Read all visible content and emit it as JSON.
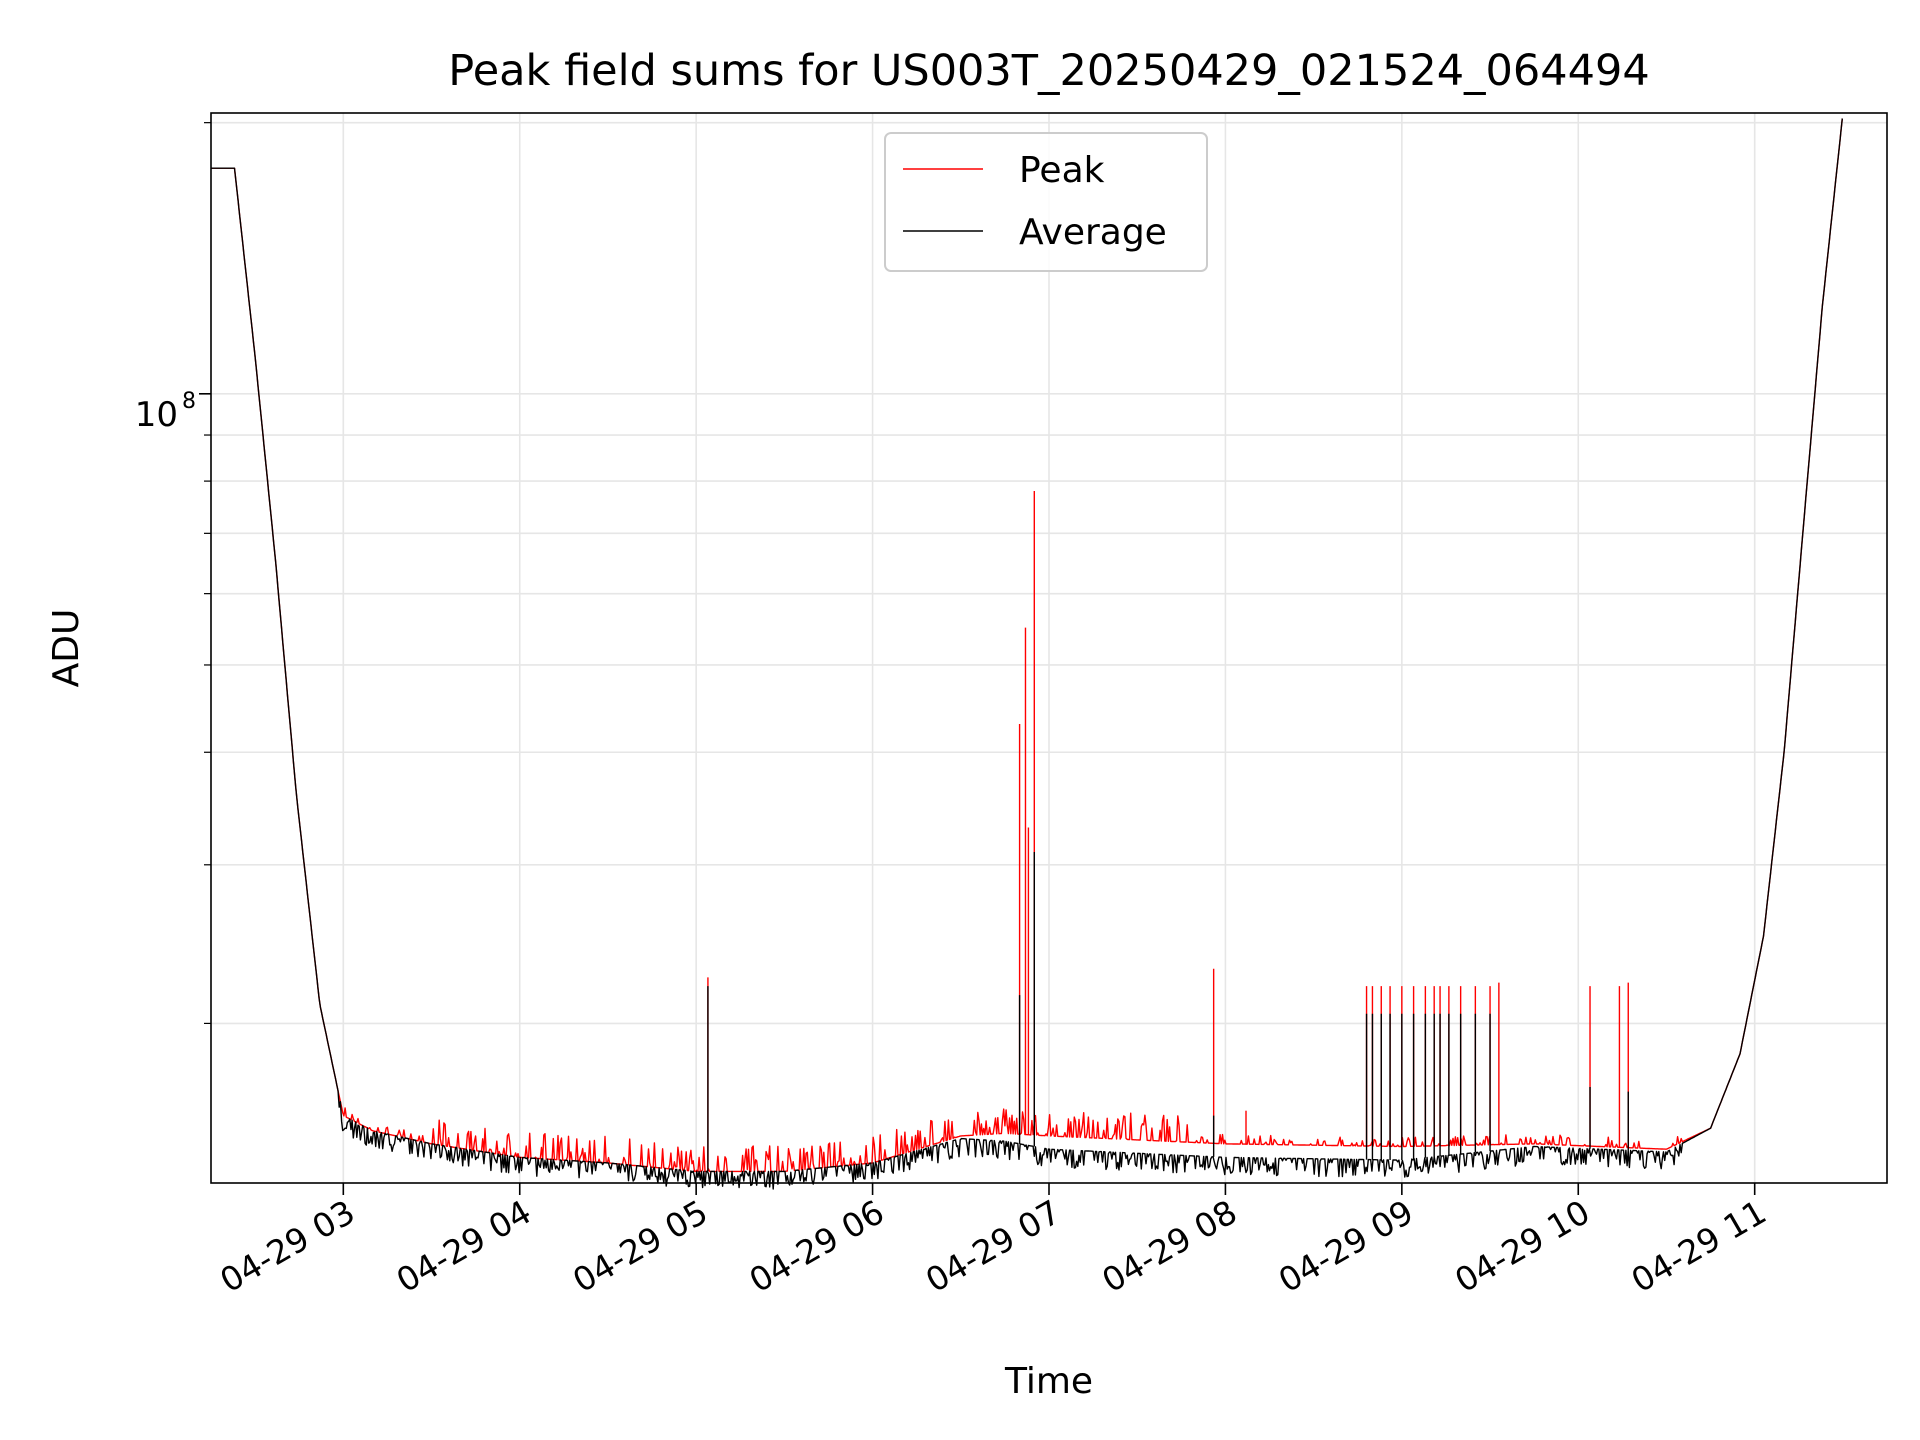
{
  "chart_data": {
    "type": "line",
    "title": "Peak field sums for US003T_20250429_021524_064494",
    "xlabel": "Time",
    "ylabel": "ADU",
    "yscale": "log",
    "y_major_tick_label": "10^8",
    "ylim": [
      13300000,
      205000000
    ],
    "x_range": [
      "2025-04-29 02:15",
      "2025-04-29 11:45"
    ],
    "x_tick_labels": [
      "04-29 03",
      "04-29 04",
      "04-29 05",
      "04-29 06",
      "04-29 07",
      "04-29 08",
      "04-29 09",
      "04-29 10",
      "04-29 11"
    ],
    "x_tick_times": [
      "2025-04-29 03:00",
      "2025-04-29 04:00",
      "2025-04-29 05:00",
      "2025-04-29 06:00",
      "2025-04-29 07:00",
      "2025-04-29 08:00",
      "2025-04-29 09:00",
      "2025-04-29 10:00",
      "2025-04-29 11:00"
    ],
    "grid": true,
    "legend_position": "top-center",
    "series": [
      {
        "name": "Peak",
        "color": "#ff0000",
        "baseline": [
          [
            "2025-04-29 02:15",
            178000000
          ],
          [
            "2025-04-29 02:23",
            178000000
          ],
          [
            "2025-04-29 02:30",
            110000000
          ],
          [
            "2025-04-29 02:37",
            65000000
          ],
          [
            "2025-04-29 02:44",
            36000000
          ],
          [
            "2025-04-29 02:52",
            21000000
          ],
          [
            "2025-04-29 03:00",
            15800000
          ],
          [
            "2025-04-29 03:10",
            15200000
          ],
          [
            "2025-04-29 03:30",
            14700000
          ],
          [
            "2025-04-29 04:00",
            14200000
          ],
          [
            "2025-04-29 04:30",
            14000000
          ],
          [
            "2025-04-29 05:00",
            13700000
          ],
          [
            "2025-04-29 05:30",
            13700000
          ],
          [
            "2025-04-29 06:00",
            14000000
          ],
          [
            "2025-04-29 06:30",
            15000000
          ],
          [
            "2025-04-29 06:45",
            15100000
          ],
          [
            "2025-04-29 07:00",
            15000000
          ],
          [
            "2025-04-29 08:00",
            14700000
          ],
          [
            "2025-04-29 09:00",
            14600000
          ],
          [
            "2025-04-29 09:45",
            14700000
          ],
          [
            "2025-04-29 10:30",
            14500000
          ],
          [
            "2025-04-29 10:45",
            15300000
          ],
          [
            "2025-04-29 10:55",
            18500000
          ],
          [
            "2025-04-29 11:03",
            25000000
          ],
          [
            "2025-04-29 11:10",
            40000000
          ],
          [
            "2025-04-29 11:17",
            74000000
          ],
          [
            "2025-04-29 11:23",
            125000000
          ],
          [
            "2025-04-29 11:30",
            205000000
          ]
        ],
        "spikes": [
          [
            "2025-04-29 05:04",
            22500000
          ],
          [
            "2025-04-29 06:50",
            43000000
          ],
          [
            "2025-04-29 06:52",
            55000000
          ],
          [
            "2025-04-29 06:53",
            33000000
          ],
          [
            "2025-04-29 06:55",
            78000000
          ],
          [
            "2025-04-29 07:56",
            23000000
          ],
          [
            "2025-04-29 08:07",
            16000000
          ],
          [
            "2025-04-29 08:48",
            22000000
          ],
          [
            "2025-04-29 08:50",
            22000000
          ],
          [
            "2025-04-29 08:53",
            22000000
          ],
          [
            "2025-04-29 08:56",
            22000000
          ],
          [
            "2025-04-29 09:00",
            22000000
          ],
          [
            "2025-04-29 09:04",
            22000000
          ],
          [
            "2025-04-29 09:08",
            22000000
          ],
          [
            "2025-04-29 09:11",
            22000000
          ],
          [
            "2025-04-29 09:13",
            22000000
          ],
          [
            "2025-04-29 09:16",
            22000000
          ],
          [
            "2025-04-29 09:20",
            22000000
          ],
          [
            "2025-04-29 09:25",
            22000000
          ],
          [
            "2025-04-29 09:30",
            22000000
          ],
          [
            "2025-04-29 09:33",
            22200000
          ],
          [
            "2025-04-29 10:04",
            22000000
          ],
          [
            "2025-04-29 10:14",
            22000000
          ],
          [
            "2025-04-29 10:17",
            22200000
          ]
        ]
      },
      {
        "name": "Average",
        "color": "#000000",
        "baseline": [
          [
            "2025-04-29 02:15",
            178000000
          ],
          [
            "2025-04-29 02:23",
            178000000
          ],
          [
            "2025-04-29 02:30",
            110000000
          ],
          [
            "2025-04-29 02:37",
            65000000
          ],
          [
            "2025-04-29 02:44",
            36000000
          ],
          [
            "2025-04-29 02:52",
            21000000
          ],
          [
            "2025-04-29 03:00",
            15800000
          ],
          [
            "2025-04-29 03:10",
            15200000
          ],
          [
            "2025-04-29 03:30",
            14700000
          ],
          [
            "2025-04-29 04:00",
            14200000
          ],
          [
            "2025-04-29 04:30",
            14000000
          ],
          [
            "2025-04-29 05:00",
            13700000
          ],
          [
            "2025-04-29 05:30",
            13700000
          ],
          [
            "2025-04-29 06:00",
            14000000
          ],
          [
            "2025-04-29 06:30",
            14900000
          ],
          [
            "2025-04-29 06:45",
            14800000
          ],
          [
            "2025-04-29 07:00",
            14500000
          ],
          [
            "2025-04-29 08:00",
            14200000
          ],
          [
            "2025-04-29 09:00",
            14100000
          ],
          [
            "2025-04-29 09:45",
            14600000
          ],
          [
            "2025-04-29 10:30",
            14400000
          ],
          [
            "2025-04-29 10:45",
            15300000
          ],
          [
            "2025-04-29 10:55",
            18500000
          ],
          [
            "2025-04-29 11:03",
            25000000
          ],
          [
            "2025-04-29 11:10",
            40000000
          ],
          [
            "2025-04-29 11:17",
            74000000
          ],
          [
            "2025-04-29 11:23",
            125000000
          ],
          [
            "2025-04-29 11:30",
            205000000
          ]
        ],
        "spikes": [
          [
            "2025-04-29 05:04",
            22000000
          ],
          [
            "2025-04-29 06:50",
            21500000
          ],
          [
            "2025-04-29 06:55",
            31000000
          ],
          [
            "2025-04-29 07:56",
            15800000
          ],
          [
            "2025-04-29 08:48",
            20500000
          ],
          [
            "2025-04-29 08:50",
            20500000
          ],
          [
            "2025-04-29 08:53",
            20500000
          ],
          [
            "2025-04-29 08:56",
            20500000
          ],
          [
            "2025-04-29 09:00",
            20500000
          ],
          [
            "2025-04-29 09:04",
            20500000
          ],
          [
            "2025-04-29 09:08",
            20500000
          ],
          [
            "2025-04-29 09:11",
            20500000
          ],
          [
            "2025-04-29 09:13",
            20500000
          ],
          [
            "2025-04-29 09:16",
            20500000
          ],
          [
            "2025-04-29 09:20",
            20500000
          ],
          [
            "2025-04-29 09:25",
            20500000
          ],
          [
            "2025-04-29 09:30",
            20500000
          ],
          [
            "2025-04-29 10:04",
            17000000
          ],
          [
            "2025-04-29 10:17",
            16800000
          ]
        ]
      }
    ]
  }
}
